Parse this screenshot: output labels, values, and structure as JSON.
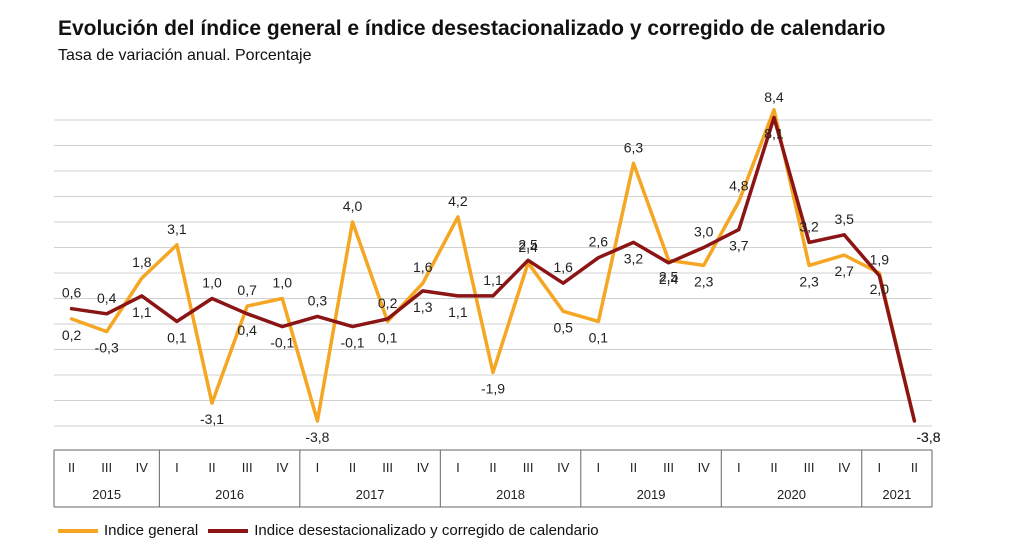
{
  "colors": {
    "general": "#F5A623",
    "adjusted": "#8B1414",
    "grid": "#d0d0d0",
    "axis": "#666666"
  },
  "chart_data": {
    "type": "line",
    "title": "Evolución del índice general e índice desestacionalizado y corregido de calendario",
    "subtitle": "Tasa de variación anual. Porcentaje",
    "quarter_labels": [
      "II",
      "III",
      "IV",
      "I",
      "II",
      "III",
      "IV",
      "I",
      "II",
      "III",
      "IV",
      "I",
      "II",
      "III",
      "IV",
      "I",
      "II",
      "III",
      "IV",
      "I",
      "II",
      "III",
      "IV",
      "I",
      "II"
    ],
    "years": [
      {
        "label": "2015",
        "count": 3
      },
      {
        "label": "2016",
        "count": 4
      },
      {
        "label": "2017",
        "count": 4
      },
      {
        "label": "2018",
        "count": 4
      },
      {
        "label": "2019",
        "count": 4
      },
      {
        "label": "2020",
        "count": 4
      },
      {
        "label": "2021",
        "count": 2
      }
    ],
    "ylim": [
      -4.2,
      9.0
    ],
    "grid": true,
    "legend_position": "bottom",
    "series": [
      {
        "name": "Indice general",
        "values": [
          0.2,
          -0.3,
          1.8,
          3.1,
          -3.1,
          0.7,
          1.0,
          -3.8,
          4.0,
          0.1,
          1.6,
          4.2,
          -1.9,
          2.4,
          0.5,
          0.1,
          6.3,
          2.5,
          2.3,
          4.8,
          8.4,
          2.3,
          2.7,
          2.0,
          -3.8
        ],
        "labels": [
          "0,2",
          "-0,3",
          "1,8",
          "3,1",
          "-3,1",
          "0,7",
          "1,0",
          "-3,8",
          "4,0",
          "0,1",
          "1,6",
          "4,2",
          "-1,9",
          "2,4",
          "0,5",
          "0,1",
          "6,3",
          "2,5",
          "2,3",
          "4,8",
          "8,4",
          "2,3",
          "2,7",
          "2,0",
          "-3,8"
        ]
      },
      {
        "name": "Indice desestacionalizado y corregido de calendario",
        "values": [
          0.6,
          0.4,
          1.1,
          0.1,
          1.0,
          0.4,
          -0.1,
          0.3,
          -0.1,
          0.2,
          1.3,
          1.1,
          1.1,
          2.5,
          1.6,
          2.6,
          3.2,
          2.4,
          3.0,
          3.7,
          8.1,
          3.2,
          3.5,
          1.9,
          -3.8
        ],
        "labels": [
          "0,6",
          "0,4",
          "1,1",
          "0,1",
          "1,0",
          "0,4",
          "-0,1",
          "0,3",
          "-0,1",
          "0,2",
          "1,3",
          "1,1",
          "1,1",
          "2,5",
          "1,6",
          "2,6",
          "3,2",
          "2,4",
          "3,0",
          "3,7",
          "8,1",
          "3,2",
          "3,5",
          "1,9",
          "-3,8"
        ]
      }
    ]
  }
}
